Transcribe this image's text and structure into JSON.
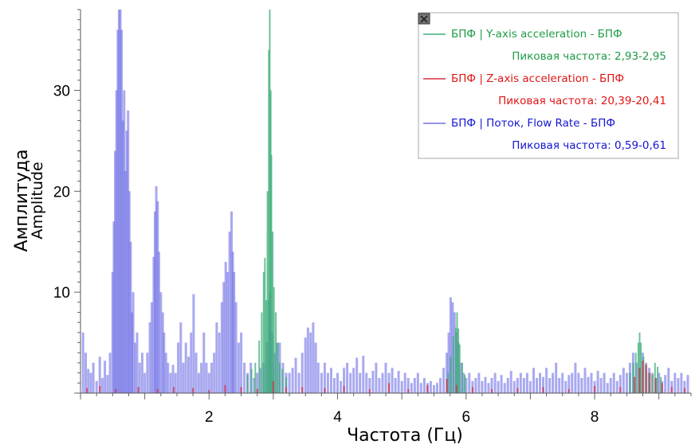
{
  "chart_data": {
    "type": "bar",
    "xlabel": "Частота (Гц)",
    "ylabel": "Амплитуда",
    "ylabel_sub": "Amplitude",
    "xlim": [
      0,
      9.5
    ],
    "ylim": [
      0,
      38
    ],
    "x_ticks": [
      2,
      4,
      6,
      8
    ],
    "y_ticks": [
      10,
      20,
      30
    ],
    "grid": false,
    "legend_position": "top-right",
    "legend_close_icon": "close-icon",
    "series": [
      {
        "name": "БПФ | Y-axis acceleration - БПФ",
        "peak_text": "Пиковая частота: 2,93-2,95",
        "color": "#1e9b46",
        "fill": "#3cae78",
        "points": [
          [
            2.6,
            1.8
          ],
          [
            2.66,
            2.4
          ],
          [
            2.72,
            3.0
          ],
          [
            2.78,
            5.2
          ],
          [
            2.82,
            8.0
          ],
          [
            2.85,
            12.0
          ],
          [
            2.87,
            13.4
          ],
          [
            2.89,
            9.2
          ],
          [
            2.91,
            20.0
          ],
          [
            2.93,
            34.0
          ],
          [
            2.945,
            38.0
          ],
          [
            2.96,
            30.0
          ],
          [
            2.97,
            23.6
          ],
          [
            2.99,
            16.0
          ],
          [
            3.01,
            10.5
          ],
          [
            3.04,
            8.0
          ],
          [
            3.07,
            5.0
          ],
          [
            3.1,
            3.0
          ],
          [
            3.14,
            2.4
          ],
          [
            3.2,
            1.6
          ],
          [
            5.72,
            2.0
          ],
          [
            5.76,
            3.6
          ],
          [
            5.8,
            5.6
          ],
          [
            5.84,
            6.5
          ],
          [
            5.86,
            8.0
          ],
          [
            5.88,
            6.4
          ],
          [
            5.9,
            4.8
          ],
          [
            5.94,
            3.0
          ],
          [
            5.98,
            1.8
          ],
          [
            8.55,
            2.0
          ],
          [
            8.6,
            3.0
          ],
          [
            8.64,
            4.0
          ],
          [
            8.68,
            5.0
          ],
          [
            8.7,
            6.0
          ],
          [
            8.72,
            5.0
          ],
          [
            8.76,
            3.6
          ],
          [
            8.8,
            2.8
          ],
          [
            8.84,
            2.0
          ],
          [
            8.9,
            1.8
          ],
          [
            8.94,
            3.0
          ],
          [
            8.98,
            2.6
          ],
          [
            9.03,
            1.6
          ]
        ]
      },
      {
        "name": "БПФ | Z-axis acceleration - БПФ",
        "peak_text": "Пиковая частота: 20,39-20,41",
        "color": "#e11515",
        "fill": "#d63040",
        "points": [
          [
            0.1,
            0.5
          ],
          [
            0.3,
            0.7
          ],
          [
            0.55,
            0.4
          ],
          [
            0.9,
            0.6
          ],
          [
            1.2,
            0.4
          ],
          [
            1.45,
            0.6
          ],
          [
            1.75,
            0.5
          ],
          [
            2.0,
            0.3
          ],
          [
            2.25,
            0.8
          ],
          [
            2.5,
            0.6
          ],
          [
            2.75,
            0.4
          ],
          [
            3.0,
            1.2
          ],
          [
            3.2,
            0.6
          ],
          [
            3.45,
            0.6
          ],
          [
            3.8,
            0.5
          ],
          [
            4.1,
            0.7
          ],
          [
            4.5,
            0.4
          ],
          [
            4.8,
            1.0
          ],
          [
            5.1,
            0.4
          ],
          [
            5.4,
            0.8
          ],
          [
            5.7,
            1.4
          ],
          [
            5.85,
            0.8
          ],
          [
            6.1,
            0.6
          ],
          [
            6.4,
            0.4
          ],
          [
            6.8,
            0.5
          ],
          [
            7.2,
            0.6
          ],
          [
            7.6,
            0.4
          ],
          [
            8.0,
            0.7
          ],
          [
            8.4,
            0.6
          ],
          [
            8.62,
            1.6
          ],
          [
            8.7,
            2.5
          ],
          [
            8.75,
            3.2
          ],
          [
            8.8,
            2.8
          ],
          [
            8.86,
            2.0
          ],
          [
            8.95,
            1.5
          ],
          [
            9.05,
            1.0
          ],
          [
            9.2,
            0.6
          ],
          [
            9.4,
            0.5
          ]
        ]
      },
      {
        "name": "БПФ | Поток, Flow Rate - БПФ",
        "peak_text": "Пиковая частота: 0,59-0,61",
        "color": "#1515d2",
        "fill": "#7070e6",
        "points": [
          [
            0.04,
            6.0
          ],
          [
            0.08,
            4.0
          ],
          [
            0.12,
            2.4
          ],
          [
            0.16,
            2.0
          ],
          [
            0.2,
            3.0
          ],
          [
            0.25,
            1.2
          ],
          [
            0.3,
            3.6
          ],
          [
            0.34,
            1.5
          ],
          [
            0.38,
            3.2
          ],
          [
            0.42,
            1.8
          ],
          [
            0.46,
            4.0
          ],
          [
            0.5,
            12.0
          ],
          [
            0.52,
            17.0
          ],
          [
            0.54,
            24.0
          ],
          [
            0.56,
            30.0
          ],
          [
            0.58,
            36.0
          ],
          [
            0.6,
            38.0
          ],
          [
            0.62,
            38.0
          ],
          [
            0.64,
            36.0
          ],
          [
            0.66,
            27.0
          ],
          [
            0.68,
            30.0
          ],
          [
            0.7,
            22.0
          ],
          [
            0.72,
            26.0
          ],
          [
            0.74,
            28.0
          ],
          [
            0.76,
            20.0
          ],
          [
            0.78,
            15.0
          ],
          [
            0.8,
            8.0
          ],
          [
            0.82,
            10.0
          ],
          [
            0.85,
            5.0
          ],
          [
            0.88,
            6.0
          ],
          [
            0.92,
            3.0
          ],
          [
            0.96,
            4.0
          ],
          [
            1.0,
            2.0
          ],
          [
            1.04,
            4.0
          ],
          [
            1.08,
            7.0
          ],
          [
            1.11,
            9.0
          ],
          [
            1.14,
            13.5
          ],
          [
            1.16,
            18.0
          ],
          [
            1.18,
            20.5
          ],
          [
            1.2,
            19.0
          ],
          [
            1.22,
            14.0
          ],
          [
            1.25,
            10.0
          ],
          [
            1.28,
            8.0
          ],
          [
            1.3,
            6.0
          ],
          [
            1.33,
            4.0
          ],
          [
            1.36,
            3.0
          ],
          [
            1.4,
            2.0
          ],
          [
            1.44,
            2.8
          ],
          [
            1.48,
            2.0
          ],
          [
            1.52,
            5.0
          ],
          [
            1.56,
            7.0
          ],
          [
            1.6,
            3.0
          ],
          [
            1.64,
            5.0
          ],
          [
            1.68,
            3.6
          ],
          [
            1.72,
            6.0
          ],
          [
            1.76,
            9.8
          ],
          [
            1.8,
            4.0
          ],
          [
            1.84,
            2.0
          ],
          [
            1.88,
            3.0
          ],
          [
            1.92,
            6.0
          ],
          [
            1.96,
            3.0
          ],
          [
            2.0,
            2.0
          ],
          [
            2.04,
            3.0
          ],
          [
            2.08,
            4.0
          ],
          [
            2.12,
            7.0
          ],
          [
            2.16,
            6.0
          ],
          [
            2.2,
            9.0
          ],
          [
            2.23,
            11.0
          ],
          [
            2.26,
            13.0
          ],
          [
            2.29,
            12.0
          ],
          [
            2.32,
            16.0
          ],
          [
            2.35,
            18.0
          ],
          [
            2.37,
            14.0
          ],
          [
            2.39,
            12.0
          ],
          [
            2.42,
            9.0
          ],
          [
            2.46,
            5.0
          ],
          [
            2.5,
            6.0
          ],
          [
            2.55,
            3.0
          ],
          [
            2.6,
            2.0
          ],
          [
            2.65,
            3.0
          ],
          [
            2.7,
            1.5
          ],
          [
            2.75,
            2.0
          ],
          [
            2.8,
            2.5
          ],
          [
            2.85,
            3.0
          ],
          [
            2.9,
            5.0
          ],
          [
            2.93,
            9.2
          ],
          [
            2.95,
            10.0
          ],
          [
            2.98,
            6.0
          ],
          [
            3.02,
            4.0
          ],
          [
            3.06,
            5.0
          ],
          [
            3.1,
            5.0
          ],
          [
            3.15,
            3.0
          ],
          [
            3.2,
            2.0
          ],
          [
            3.25,
            2.0
          ],
          [
            3.3,
            2.5
          ],
          [
            3.35,
            3.5
          ],
          [
            3.4,
            2.0
          ],
          [
            3.45,
            4.0
          ],
          [
            3.5,
            5.5
          ],
          [
            3.54,
            6.5
          ],
          [
            3.58,
            6.0
          ],
          [
            3.62,
            7.0
          ],
          [
            3.66,
            5.0
          ],
          [
            3.7,
            3.0
          ],
          [
            3.75,
            2.0
          ],
          [
            3.8,
            3.0
          ],
          [
            3.85,
            2.0
          ],
          [
            3.9,
            2.5
          ],
          [
            3.95,
            1.5
          ],
          [
            4.0,
            2.0
          ],
          [
            4.05,
            1.2
          ],
          [
            4.1,
            2.5
          ],
          [
            4.15,
            3.0
          ],
          [
            4.2,
            2.0
          ],
          [
            4.25,
            2.5
          ],
          [
            4.3,
            3.5
          ],
          [
            4.35,
            2.0
          ],
          [
            4.4,
            3.7
          ],
          [
            4.45,
            2.0
          ],
          [
            4.5,
            1.5
          ],
          [
            4.55,
            2.2
          ],
          [
            4.6,
            3.0
          ],
          [
            4.65,
            1.5
          ],
          [
            4.7,
            2.0
          ],
          [
            4.75,
            3.0
          ],
          [
            4.8,
            2.0
          ],
          [
            4.85,
            2.5
          ],
          [
            4.9,
            1.5
          ],
          [
            4.95,
            2.2
          ],
          [
            5.0,
            1.2
          ],
          [
            5.05,
            2.0
          ],
          [
            5.1,
            1.5
          ],
          [
            5.15,
            1.0
          ],
          [
            5.2,
            1.5
          ],
          [
            5.25,
            2.0
          ],
          [
            5.3,
            1.0
          ],
          [
            5.35,
            1.5
          ],
          [
            5.4,
            1.0
          ],
          [
            5.45,
            1.2
          ],
          [
            5.5,
            0.8
          ],
          [
            5.55,
            1.0
          ],
          [
            5.6,
            1.5
          ],
          [
            5.65,
            2.5
          ],
          [
            5.7,
            4.0
          ],
          [
            5.73,
            6.0
          ],
          [
            5.76,
            9.5
          ],
          [
            5.79,
            9.0
          ],
          [
            5.82,
            8.0
          ],
          [
            5.85,
            6.0
          ],
          [
            5.88,
            5.0
          ],
          [
            5.92,
            3.0
          ],
          [
            5.96,
            2.0
          ],
          [
            6.0,
            1.5
          ],
          [
            6.05,
            2.0
          ],
          [
            6.1,
            1.2
          ],
          [
            6.15,
            1.5
          ],
          [
            6.2,
            2.0
          ],
          [
            6.25,
            1.2
          ],
          [
            6.3,
            1.6
          ],
          [
            6.35,
            1.0
          ],
          [
            6.4,
            1.5
          ],
          [
            6.45,
            2.0
          ],
          [
            6.5,
            1.2
          ],
          [
            6.55,
            1.8
          ],
          [
            6.6,
            1.0
          ],
          [
            6.65,
            1.5
          ],
          [
            6.7,
            2.2
          ],
          [
            6.75,
            1.2
          ],
          [
            6.8,
            1.5
          ],
          [
            6.85,
            2.0
          ],
          [
            6.9,
            1.5
          ],
          [
            6.95,
            2.0
          ],
          [
            7.0,
            1.2
          ],
          [
            7.05,
            2.5
          ],
          [
            7.1,
            1.5
          ],
          [
            7.15,
            2.0
          ],
          [
            7.2,
            1.6
          ],
          [
            7.25,
            2.5
          ],
          [
            7.3,
            1.5
          ],
          [
            7.35,
            2.0
          ],
          [
            7.4,
            3.0
          ],
          [
            7.45,
            1.5
          ],
          [
            7.5,
            2.0
          ],
          [
            7.55,
            1.2
          ],
          [
            7.6,
            1.8
          ],
          [
            7.65,
            2.0
          ],
          [
            7.7,
            3.0
          ],
          [
            7.75,
            2.0
          ],
          [
            7.8,
            1.5
          ],
          [
            7.85,
            2.5
          ],
          [
            7.9,
            1.6
          ],
          [
            7.95,
            2.0
          ],
          [
            8.0,
            1.2
          ],
          [
            8.05,
            2.2
          ],
          [
            8.1,
            1.5
          ],
          [
            8.15,
            2.0
          ],
          [
            8.2,
            1.0
          ],
          [
            8.25,
            1.5
          ],
          [
            8.3,
            2.0
          ],
          [
            8.35,
            1.2
          ],
          [
            8.4,
            1.8
          ],
          [
            8.45,
            2.5
          ],
          [
            8.5,
            2.0
          ],
          [
            8.55,
            3.0
          ],
          [
            8.6,
            4.0
          ],
          [
            8.65,
            3.0
          ],
          [
            8.7,
            2.5
          ],
          [
            8.75,
            4.0
          ],
          [
            8.8,
            3.0
          ],
          [
            8.85,
            2.5
          ],
          [
            8.9,
            2.0
          ],
          [
            8.95,
            1.5
          ],
          [
            9.0,
            2.0
          ],
          [
            9.05,
            1.2
          ],
          [
            9.1,
            1.8
          ],
          [
            9.15,
            2.5
          ],
          [
            9.2,
            1.2
          ],
          [
            9.25,
            2.0
          ],
          [
            9.3,
            1.5
          ],
          [
            9.35,
            2.0
          ],
          [
            9.4,
            1.2
          ],
          [
            9.45,
            1.8
          ]
        ]
      }
    ]
  }
}
